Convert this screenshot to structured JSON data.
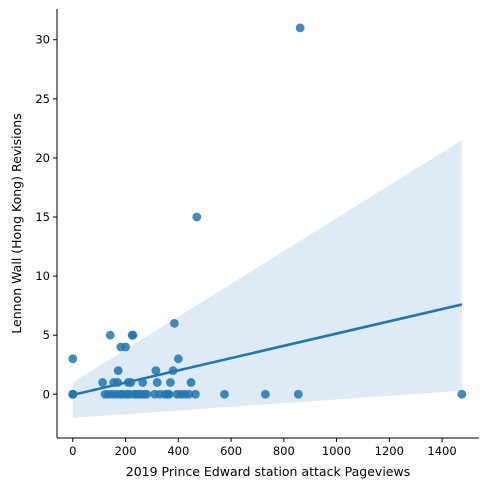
{
  "chart_data": {
    "type": "scatter",
    "xlabel": "2019 Prince Edward station attack Pageviews",
    "ylabel": "Lennon Wall (Hong Kong) Revisions",
    "xlim": [
      -60,
      1540
    ],
    "ylim": [
      -3.7,
      32.6
    ],
    "xticks": [
      0,
      200,
      400,
      600,
      800,
      1000,
      1200,
      1400
    ],
    "yticks": [
      0,
      5,
      10,
      15,
      20,
      25,
      30
    ],
    "grid": false,
    "colors": {
      "points": "#1f77b4",
      "line": "#1f77b4",
      "band": "#1f77b4"
    },
    "points": [
      [
        0,
        3
      ],
      [
        0,
        0
      ],
      [
        0,
        0
      ],
      [
        0,
        0
      ],
      [
        0,
        0
      ],
      [
        0,
        0
      ],
      [
        113,
        1
      ],
      [
        122,
        0
      ],
      [
        135,
        0
      ],
      [
        142,
        5
      ],
      [
        150,
        0
      ],
      [
        155,
        1
      ],
      [
        165,
        0
      ],
      [
        170,
        1
      ],
      [
        172,
        2
      ],
      [
        180,
        0
      ],
      [
        182,
        4
      ],
      [
        190,
        0
      ],
      [
        200,
        4
      ],
      [
        205,
        0
      ],
      [
        210,
        1
      ],
      [
        215,
        0
      ],
      [
        220,
        1
      ],
      [
        225,
        5
      ],
      [
        228,
        5
      ],
      [
        232,
        0
      ],
      [
        240,
        0
      ],
      [
        250,
        0
      ],
      [
        258,
        0
      ],
      [
        265,
        1
      ],
      [
        270,
        0
      ],
      [
        280,
        0
      ],
      [
        310,
        0
      ],
      [
        315,
        2
      ],
      [
        320,
        1
      ],
      [
        330,
        0
      ],
      [
        350,
        0
      ],
      [
        360,
        0
      ],
      [
        365,
        0
      ],
      [
        370,
        1
      ],
      [
        380,
        2
      ],
      [
        385,
        6
      ],
      [
        395,
        0
      ],
      [
        400,
        3
      ],
      [
        410,
        0
      ],
      [
        425,
        0
      ],
      [
        440,
        0
      ],
      [
        448,
        1
      ],
      [
        465,
        0
      ],
      [
        470,
        15
      ],
      [
        575,
        0
      ],
      [
        730,
        0
      ],
      [
        855,
        0
      ],
      [
        862,
        31
      ],
      [
        1475,
        0
      ]
    ],
    "regression": {
      "x": [
        0,
        1475
      ],
      "y": [
        -0.05,
        7.6
      ]
    },
    "confidence_band": {
      "x": [
        0,
        1475
      ],
      "upper": [
        1.0,
        21.5
      ],
      "lower": [
        -2.0,
        0.3
      ]
    }
  }
}
